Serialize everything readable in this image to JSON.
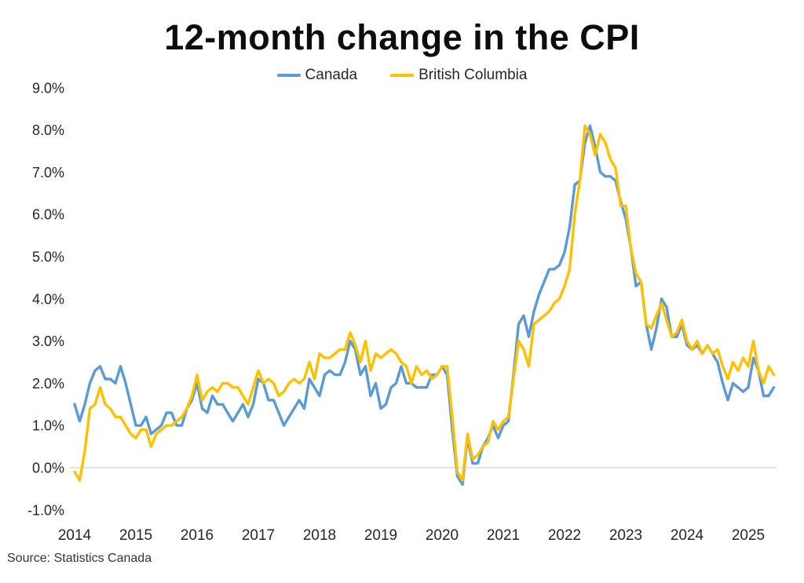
{
  "header": {
    "title": "12-month change in the CPI"
  },
  "footer": {
    "source": "Source: Statistics Canada"
  },
  "colors": {
    "canada_line": "#5B9BD5",
    "bc_line": "#FFC000",
    "zero_gridline": "#D9D9D9",
    "axis_text": "#262626",
    "title_text": "#0D0D0D",
    "background": "#FFFFFF"
  },
  "chart_data": {
    "type": "line",
    "title": "12-month change in the CPI",
    "unit": "percent (12-month % change in CPI)",
    "x_frequency": "monthly",
    "x_start": "2014-01",
    "x_end": "2025-06",
    "x_tick_labels": [
      "2014",
      "2015",
      "2016",
      "2017",
      "2018",
      "2019",
      "2020",
      "2021",
      "2022",
      "2023",
      "2024",
      "2025"
    ],
    "y_tick_labels": [
      "9.0%",
      "8.0%",
      "7.0%",
      "6.0%",
      "5.0%",
      "4.0%",
      "3.0%",
      "2.0%",
      "1.0%",
      "0.0%",
      "-1.0%"
    ],
    "ylim": [
      -1.0,
      9.0
    ],
    "grid": "single light horizontal gridline at 0.0% only",
    "legend_position": "top-center",
    "series": [
      {
        "name": "Canada",
        "color": "#5B9BD5",
        "values": [
          1.5,
          1.1,
          1.5,
          2.0,
          2.3,
          2.4,
          2.1,
          2.1,
          2.0,
          2.4,
          2.0,
          1.5,
          1.0,
          1.0,
          1.2,
          0.8,
          0.9,
          1.0,
          1.3,
          1.3,
          1.0,
          1.0,
          1.4,
          1.6,
          2.0,
          1.4,
          1.3,
          1.7,
          1.5,
          1.5,
          1.3,
          1.1,
          1.3,
          1.5,
          1.2,
          1.5,
          2.1,
          2.0,
          1.6,
          1.6,
          1.3,
          1.0,
          1.2,
          1.4,
          1.6,
          1.4,
          2.1,
          1.9,
          1.7,
          2.2,
          2.3,
          2.2,
          2.2,
          2.5,
          3.0,
          2.8,
          2.2,
          2.4,
          1.7,
          2.0,
          1.4,
          1.5,
          1.9,
          2.0,
          2.4,
          2.0,
          2.0,
          1.9,
          1.9,
          1.9,
          2.2,
          2.2,
          2.4,
          2.2,
          0.9,
          -0.2,
          -0.4,
          0.7,
          0.1,
          0.1,
          0.5,
          0.7,
          1.0,
          0.7,
          1.0,
          1.1,
          2.2,
          3.4,
          3.6,
          3.1,
          3.7,
          4.1,
          4.4,
          4.7,
          4.7,
          4.8,
          5.1,
          5.7,
          6.7,
          6.8,
          7.7,
          8.1,
          7.6,
          7.0,
          6.9,
          6.9,
          6.8,
          6.3,
          5.9,
          5.2,
          4.3,
          4.4,
          3.4,
          2.8,
          3.3,
          4.0,
          3.8,
          3.1,
          3.1,
          3.4,
          2.9,
          2.8,
          2.9,
          2.7,
          2.9,
          2.7,
          2.5,
          2.0,
          1.6,
          2.0,
          1.9,
          1.8,
          1.9,
          2.6,
          2.3,
          1.7,
          1.7,
          1.9
        ]
      },
      {
        "name": "British Columbia",
        "color": "#FFC000",
        "values": [
          -0.1,
          -0.3,
          0.4,
          1.4,
          1.5,
          1.9,
          1.5,
          1.4,
          1.2,
          1.2,
          1.0,
          0.8,
          0.7,
          0.9,
          0.9,
          0.5,
          0.8,
          0.9,
          1.0,
          1.0,
          1.1,
          1.2,
          1.4,
          1.7,
          2.2,
          1.6,
          1.8,
          1.9,
          1.8,
          2.0,
          2.0,
          1.9,
          1.9,
          1.7,
          1.5,
          1.9,
          2.3,
          2.0,
          2.1,
          2.0,
          1.7,
          1.8,
          2.0,
          2.1,
          2.0,
          2.1,
          2.5,
          2.1,
          2.7,
          2.6,
          2.6,
          2.7,
          2.8,
          2.8,
          3.2,
          2.9,
          2.5,
          3.0,
          2.3,
          2.7,
          2.6,
          2.7,
          2.8,
          2.7,
          2.5,
          2.4,
          2.0,
          2.4,
          2.2,
          2.3,
          2.1,
          2.2,
          2.4,
          2.4,
          1.2,
          -0.1,
          -0.3,
          0.8,
          0.2,
          0.3,
          0.5,
          0.6,
          1.1,
          0.9,
          1.1,
          1.2,
          2.1,
          3.0,
          2.8,
          2.4,
          3.4,
          3.5,
          3.6,
          3.7,
          3.9,
          4.0,
          4.3,
          4.7,
          6.0,
          6.8,
          8.1,
          7.9,
          7.4,
          7.9,
          7.7,
          7.3,
          7.1,
          6.2,
          6.2,
          5.2,
          4.6,
          4.4,
          3.4,
          3.3,
          3.6,
          3.9,
          3.5,
          3.1,
          3.2,
          3.5,
          3.0,
          2.8,
          3.0,
          2.7,
          2.9,
          2.7,
          2.8,
          2.4,
          2.1,
          2.5,
          2.3,
          2.6,
          2.4,
          3.0,
          2.3,
          2.0,
          2.4,
          2.2
        ]
      }
    ]
  }
}
